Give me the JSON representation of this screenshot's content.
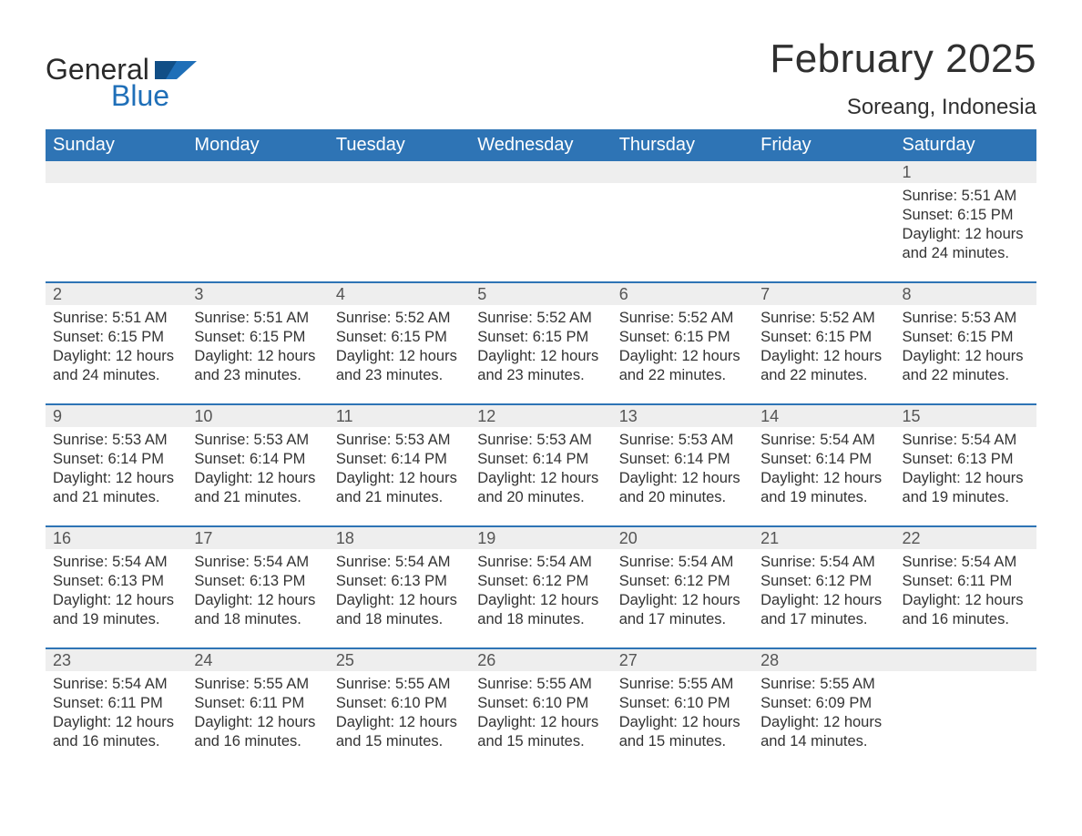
{
  "brand": {
    "word1": "General",
    "word2": "Blue",
    "accent_color": "#1f6fb8"
  },
  "title": "February 2025",
  "location": "Soreang, Indonesia",
  "colors": {
    "header_bg": "#2e74b5",
    "header_text": "#ffffff",
    "daynum_band_bg": "#eeeeee",
    "week_divider": "#2e74b5",
    "body_text": "#333333",
    "title_text": "#303030"
  },
  "typography": {
    "title_fontsize": 44,
    "location_fontsize": 24,
    "header_fontsize": 20,
    "daynum_fontsize": 18,
    "body_fontsize": 16.5
  },
  "day_headers": [
    "Sunday",
    "Monday",
    "Tuesday",
    "Wednesday",
    "Thursday",
    "Friday",
    "Saturday"
  ],
  "weeks": [
    [
      {
        "day": "",
        "sunrise": "",
        "sunset": "",
        "daylight": ""
      },
      {
        "day": "",
        "sunrise": "",
        "sunset": "",
        "daylight": ""
      },
      {
        "day": "",
        "sunrise": "",
        "sunset": "",
        "daylight": ""
      },
      {
        "day": "",
        "sunrise": "",
        "sunset": "",
        "daylight": ""
      },
      {
        "day": "",
        "sunrise": "",
        "sunset": "",
        "daylight": ""
      },
      {
        "day": "",
        "sunrise": "",
        "sunset": "",
        "daylight": ""
      },
      {
        "day": "1",
        "sunrise": "Sunrise: 5:51 AM",
        "sunset": "Sunset: 6:15 PM",
        "daylight": "Daylight: 12 hours and 24 minutes."
      }
    ],
    [
      {
        "day": "2",
        "sunrise": "Sunrise: 5:51 AM",
        "sunset": "Sunset: 6:15 PM",
        "daylight": "Daylight: 12 hours and 24 minutes."
      },
      {
        "day": "3",
        "sunrise": "Sunrise: 5:51 AM",
        "sunset": "Sunset: 6:15 PM",
        "daylight": "Daylight: 12 hours and 23 minutes."
      },
      {
        "day": "4",
        "sunrise": "Sunrise: 5:52 AM",
        "sunset": "Sunset: 6:15 PM",
        "daylight": "Daylight: 12 hours and 23 minutes."
      },
      {
        "day": "5",
        "sunrise": "Sunrise: 5:52 AM",
        "sunset": "Sunset: 6:15 PM",
        "daylight": "Daylight: 12 hours and 23 minutes."
      },
      {
        "day": "6",
        "sunrise": "Sunrise: 5:52 AM",
        "sunset": "Sunset: 6:15 PM",
        "daylight": "Daylight: 12 hours and 22 minutes."
      },
      {
        "day": "7",
        "sunrise": "Sunrise: 5:52 AM",
        "sunset": "Sunset: 6:15 PM",
        "daylight": "Daylight: 12 hours and 22 minutes."
      },
      {
        "day": "8",
        "sunrise": "Sunrise: 5:53 AM",
        "sunset": "Sunset: 6:15 PM",
        "daylight": "Daylight: 12 hours and 22 minutes."
      }
    ],
    [
      {
        "day": "9",
        "sunrise": "Sunrise: 5:53 AM",
        "sunset": "Sunset: 6:14 PM",
        "daylight": "Daylight: 12 hours and 21 minutes."
      },
      {
        "day": "10",
        "sunrise": "Sunrise: 5:53 AM",
        "sunset": "Sunset: 6:14 PM",
        "daylight": "Daylight: 12 hours and 21 minutes."
      },
      {
        "day": "11",
        "sunrise": "Sunrise: 5:53 AM",
        "sunset": "Sunset: 6:14 PM",
        "daylight": "Daylight: 12 hours and 21 minutes."
      },
      {
        "day": "12",
        "sunrise": "Sunrise: 5:53 AM",
        "sunset": "Sunset: 6:14 PM",
        "daylight": "Daylight: 12 hours and 20 minutes."
      },
      {
        "day": "13",
        "sunrise": "Sunrise: 5:53 AM",
        "sunset": "Sunset: 6:14 PM",
        "daylight": "Daylight: 12 hours and 20 minutes."
      },
      {
        "day": "14",
        "sunrise": "Sunrise: 5:54 AM",
        "sunset": "Sunset: 6:14 PM",
        "daylight": "Daylight: 12 hours and 19 minutes."
      },
      {
        "day": "15",
        "sunrise": "Sunrise: 5:54 AM",
        "sunset": "Sunset: 6:13 PM",
        "daylight": "Daylight: 12 hours and 19 minutes."
      }
    ],
    [
      {
        "day": "16",
        "sunrise": "Sunrise: 5:54 AM",
        "sunset": "Sunset: 6:13 PM",
        "daylight": "Daylight: 12 hours and 19 minutes."
      },
      {
        "day": "17",
        "sunrise": "Sunrise: 5:54 AM",
        "sunset": "Sunset: 6:13 PM",
        "daylight": "Daylight: 12 hours and 18 minutes."
      },
      {
        "day": "18",
        "sunrise": "Sunrise: 5:54 AM",
        "sunset": "Sunset: 6:13 PM",
        "daylight": "Daylight: 12 hours and 18 minutes."
      },
      {
        "day": "19",
        "sunrise": "Sunrise: 5:54 AM",
        "sunset": "Sunset: 6:12 PM",
        "daylight": "Daylight: 12 hours and 18 minutes."
      },
      {
        "day": "20",
        "sunrise": "Sunrise: 5:54 AM",
        "sunset": "Sunset: 6:12 PM",
        "daylight": "Daylight: 12 hours and 17 minutes."
      },
      {
        "day": "21",
        "sunrise": "Sunrise: 5:54 AM",
        "sunset": "Sunset: 6:12 PM",
        "daylight": "Daylight: 12 hours and 17 minutes."
      },
      {
        "day": "22",
        "sunrise": "Sunrise: 5:54 AM",
        "sunset": "Sunset: 6:11 PM",
        "daylight": "Daylight: 12 hours and 16 minutes."
      }
    ],
    [
      {
        "day": "23",
        "sunrise": "Sunrise: 5:54 AM",
        "sunset": "Sunset: 6:11 PM",
        "daylight": "Daylight: 12 hours and 16 minutes."
      },
      {
        "day": "24",
        "sunrise": "Sunrise: 5:55 AM",
        "sunset": "Sunset: 6:11 PM",
        "daylight": "Daylight: 12 hours and 16 minutes."
      },
      {
        "day": "25",
        "sunrise": "Sunrise: 5:55 AM",
        "sunset": "Sunset: 6:10 PM",
        "daylight": "Daylight: 12 hours and 15 minutes."
      },
      {
        "day": "26",
        "sunrise": "Sunrise: 5:55 AM",
        "sunset": "Sunset: 6:10 PM",
        "daylight": "Daylight: 12 hours and 15 minutes."
      },
      {
        "day": "27",
        "sunrise": "Sunrise: 5:55 AM",
        "sunset": "Sunset: 6:10 PM",
        "daylight": "Daylight: 12 hours and 15 minutes."
      },
      {
        "day": "28",
        "sunrise": "Sunrise: 5:55 AM",
        "sunset": "Sunset: 6:09 PM",
        "daylight": "Daylight: 12 hours and 14 minutes."
      },
      {
        "day": "",
        "sunrise": "",
        "sunset": "",
        "daylight": ""
      }
    ]
  ]
}
